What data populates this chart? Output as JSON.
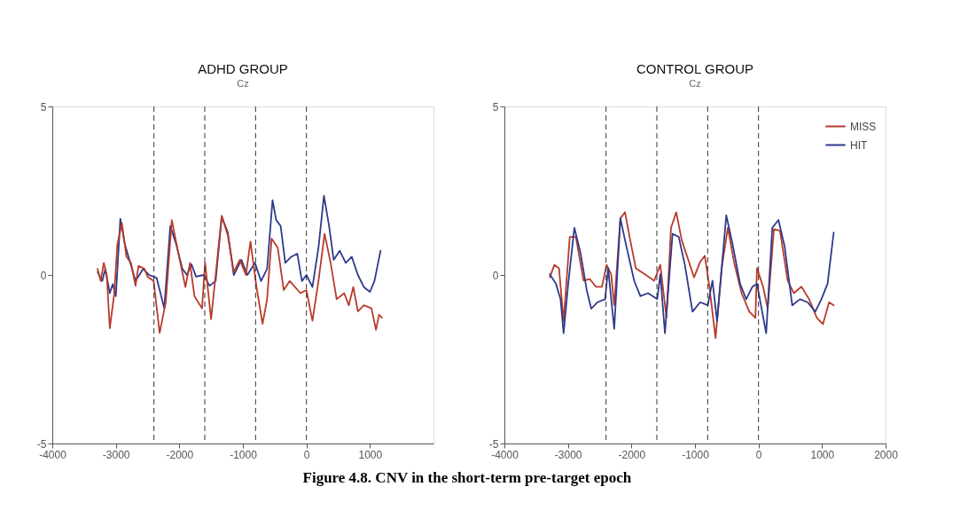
{
  "chart_data": [
    {
      "type": "line",
      "title": "ADHD GROUP",
      "subtitle": "Cz",
      "xlim": [
        -4000,
        2000
      ],
      "xticks": [
        -4000,
        -3000,
        -2000,
        -1000,
        0,
        1000
      ],
      "ylim": [
        -5,
        5
      ],
      "yticks": [
        -5,
        0,
        5
      ],
      "grid": false,
      "legend": false,
      "marker": "none",
      "line_style": "solid",
      "ref_lines": [
        {
          "axis": "x",
          "value": -2400,
          "color": "#333333",
          "line_style": "dashed"
        },
        {
          "axis": "x",
          "value": -1600,
          "color": "#333333",
          "line_style": "dashed"
        },
        {
          "axis": "x",
          "value": -800,
          "color": "#333333",
          "line_style": "dashed"
        },
        {
          "axis": "x",
          "value": 0,
          "color": "#333333",
          "line_style": "dashed"
        }
      ],
      "series": [
        {
          "color": "#2e3a8c",
          "x": [
            -3286,
            -3214,
            -3167,
            -3095,
            -3048,
            -3000,
            -2929,
            -2857,
            -2786,
            -2690,
            -2571,
            -2476,
            -2357,
            -2238,
            -2143,
            -2048,
            -1952,
            -1881,
            -1810,
            -1738,
            -1619,
            -1524,
            -1429,
            -1333,
            -1238,
            -1143,
            -1024,
            -929,
            -810,
            -714,
            -619,
            -533,
            -476,
            -405,
            -333,
            -238,
            -143,
            -71,
            0,
            95,
            190,
            276,
            357,
            429,
            524,
            619,
            714,
            810,
            905,
            1000,
            1071,
            1167
          ],
          "values": [
            0.09,
            -0.18,
            0.18,
            -0.54,
            -0.27,
            -0.63,
            1.67,
            0.9,
            0.45,
            -0.18,
            0.18,
            0,
            -0.09,
            -0.99,
            1.45,
            0.9,
            0.18,
            0,
            0.32,
            -0.05,
            0,
            -0.32,
            -0.18,
            1.72,
            1.27,
            0,
            0.45,
            0,
            0.36,
            -0.18,
            0.18,
            2.22,
            1.63,
            1.45,
            0.36,
            0.54,
            0.63,
            -0.18,
            0,
            -0.36,
            0.81,
            2.35,
            1.45,
            0.45,
            0.72,
            0.36,
            0.54,
            0,
            -0.36,
            -0.5,
            -0.18,
            0.72
          ]
        },
        {
          "color": "#b83a2a",
          "x": [
            -3286,
            -3238,
            -3190,
            -3143,
            -3095,
            -3024,
            -2976,
            -2905,
            -2833,
            -2762,
            -2690,
            -2643,
            -2548,
            -2500,
            -2405,
            -2310,
            -2214,
            -2119,
            -2024,
            -1905,
            -1833,
            -1762,
            -1643,
            -1595,
            -1500,
            -1429,
            -1333,
            -1238,
            -1143,
            -1048,
            -952,
            -881,
            -786,
            -690,
            -619,
            -548,
            -452,
            -357,
            -262,
            -95,
            0,
            95,
            190,
            286,
            381,
            476,
            595,
            667,
            738,
            810,
            905,
            1024,
            1095,
            1143,
            1190
          ],
          "values": [
            0.18,
            -0.18,
            0.36,
            0,
            -1.58,
            -0.54,
            0.9,
            1.54,
            0.54,
            0.36,
            -0.32,
            0.27,
            0.18,
            -0.05,
            -0.18,
            -1.72,
            -0.81,
            1.63,
            0.72,
            -0.36,
            0.36,
            -0.63,
            -0.99,
            0.36,
            -1.31,
            0,
            1.76,
            1.18,
            0.09,
            0.45,
            0,
            0.99,
            -0.36,
            -1.45,
            -0.72,
            1.08,
            0.81,
            -0.45,
            -0.18,
            -0.54,
            -0.45,
            -1.36,
            -0.18,
            1.22,
            0.36,
            -0.72,
            -0.54,
            -0.9,
            -0.36,
            -1.08,
            -0.9,
            -0.99,
            -1.63,
            -1.18,
            -1.27
          ]
        }
      ],
      "annotations": [
        "Figure 4.8. CNV in the short-term pre-target epoch"
      ]
    },
    {
      "type": "line",
      "title": "CONTROL GROUP",
      "subtitle": "Cz",
      "xlim": [
        -4000,
        2000
      ],
      "xticks": [
        -4000,
        -3000,
        -2000,
        -1000,
        0,
        1000,
        2000
      ],
      "ylim": [
        -5,
        5
      ],
      "yticks": [
        -5,
        0,
        5
      ],
      "grid": false,
      "legend": "top right",
      "marker": "none",
      "line_style": "solid",
      "ref_lines": [
        {
          "axis": "x",
          "value": -2400,
          "color": "#333333",
          "line_style": "dashed"
        },
        {
          "axis": "x",
          "value": -1600,
          "color": "#333333",
          "line_style": "dashed"
        },
        {
          "axis": "x",
          "value": -800,
          "color": "#333333",
          "line_style": "dashed"
        },
        {
          "axis": "x",
          "value": 0,
          "color": "#333333",
          "line_style": "dashed"
        }
      ],
      "series": [
        {
          "name": "MISS",
          "color": "#b83a2a",
          "x": [
            -3285,
            -3213,
            -3140,
            -3068,
            -2971,
            -2875,
            -2754,
            -2657,
            -2560,
            -2464,
            -2391,
            -2319,
            -2271,
            -2174,
            -2101,
            -2029,
            -1932,
            -1787,
            -1643,
            -1546,
            -1449,
            -1377,
            -1295,
            -1208,
            -1111,
            -1014,
            -918,
            -845,
            -773,
            -676,
            -580,
            -483,
            -386,
            -266,
            -145,
            -48,
            -24,
            72,
            145,
            242,
            338,
            459,
            556,
            676,
            797,
            918,
            1014,
            1111,
            1184
          ],
          "values": [
            -0.07,
            0.3,
            0.2,
            -1.37,
            1.13,
            1.13,
            -0.17,
            -0.12,
            -0.35,
            -0.35,
            0.3,
            0.02,
            -0.9,
            1.68,
            1.86,
            1.13,
            0.2,
            0.02,
            -0.17,
            0.3,
            -1.27,
            1.4,
            1.86,
            1.03,
            0.48,
            -0.07,
            0.39,
            0.57,
            -0.35,
            -1.87,
            0.2,
            1.4,
            0.39,
            -0.54,
            -1.09,
            -1.27,
            0.2,
            -0.35,
            -1.0,
            1.36,
            1.31,
            -0.17,
            -0.54,
            -0.35,
            -0.72,
            -1.27,
            -1.46,
            -0.81,
            -0.9
          ]
        },
        {
          "name": "HIT",
          "color": "#2e3a8c",
          "x": [
            -3285,
            -3189,
            -3116,
            -3068,
            -2995,
            -2899,
            -2802,
            -2705,
            -2633,
            -2536,
            -2415,
            -2367,
            -2271,
            -2174,
            -2101,
            -1957,
            -1860,
            -1739,
            -1594,
            -1546,
            -1473,
            -1353,
            -1256,
            -1159,
            -1039,
            -918,
            -797,
            -725,
            -652,
            -507,
            -411,
            -290,
            -193,
            -97,
            -24,
            121,
            217,
            314,
            411,
            531,
            652,
            773,
            894,
            990,
            1087,
            1184
          ],
          "values": [
            0.02,
            -0.26,
            -0.72,
            -1.73,
            -0.26,
            1.4,
            0.66,
            -0.44,
            -1.0,
            -0.81,
            -0.72,
            0.2,
            -1.6,
            1.68,
            1.03,
            -0.17,
            -0.63,
            -0.54,
            -0.72,
            0.02,
            -1.73,
            1.22,
            1.13,
            0.3,
            -1.09,
            -0.81,
            -0.9,
            -0.17,
            -1.37,
            1.77,
            0.94,
            -0.26,
            -0.72,
            -0.35,
            -0.26,
            -1.73,
            1.4,
            1.63,
            0.85,
            -0.9,
            -0.72,
            -0.81,
            -1.09,
            -0.72,
            -0.26,
            1.26
          ]
        }
      ]
    }
  ]
}
